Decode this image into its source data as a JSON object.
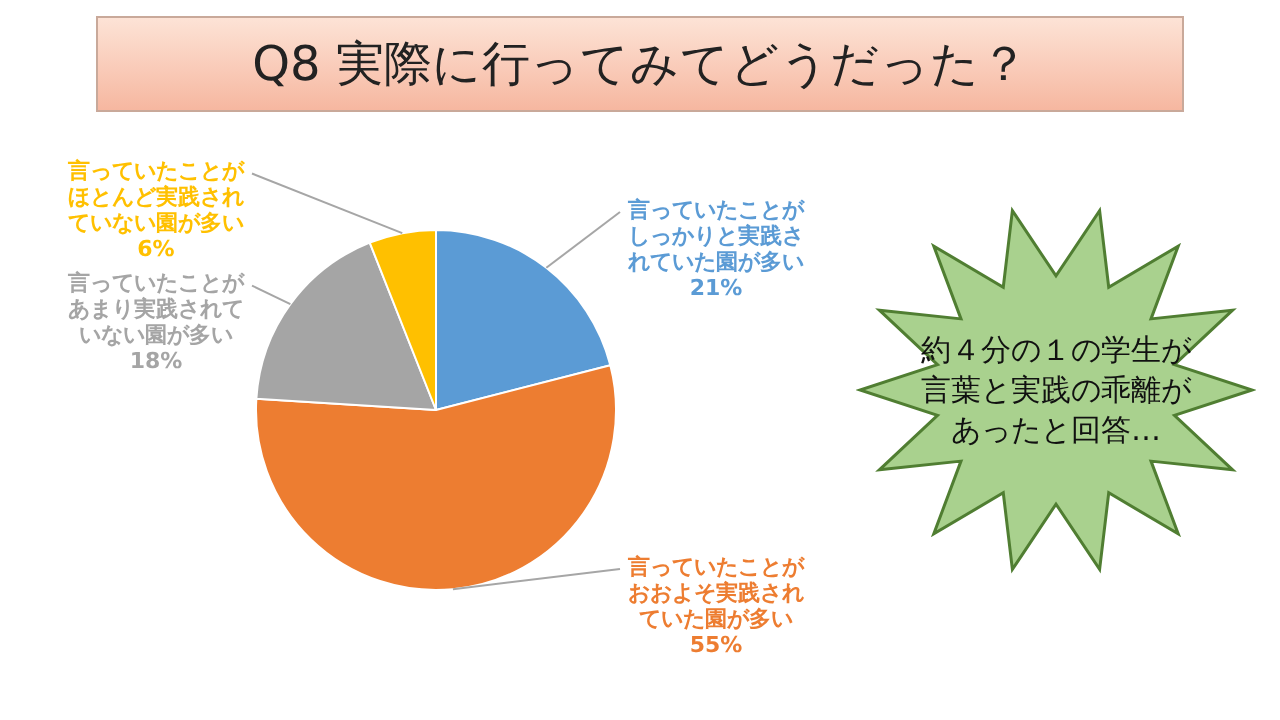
{
  "chart_data": {
    "type": "pie",
    "title": "Q8 実際に行ってみてどうだった？",
    "categories": [
      "言っていたことがしっかりと実践されていた園が多い",
      "言っていたことがおおよそ実践されていた園が多い",
      "言っていたことがあまり実践されていない園が多い",
      "言っていたことがほとんど実践されていない園が多い"
    ],
    "values": [
      21,
      55,
      18,
      6
    ],
    "colors": [
      "#5b9bd5",
      "#ed7d31",
      "#a5a5a5",
      "#ffc000"
    ],
    "value_labels": [
      "21%",
      "55%",
      "18%",
      "6%"
    ],
    "annotations": [
      "約４分の１の学生が言葉と実践の乖離があったと回答…"
    ]
  }
}
